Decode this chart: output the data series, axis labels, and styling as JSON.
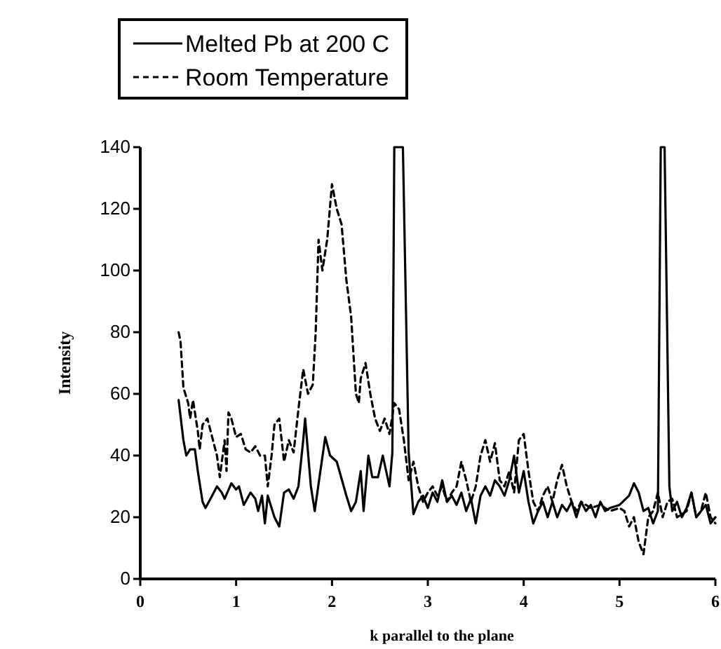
{
  "chart_data": {
    "type": "line",
    "xlabel": "k parallel to the plane",
    "ylabel": "Intensity",
    "xlim": [
      0,
      6
    ],
    "ylim": [
      0,
      140
    ],
    "xticks": [
      0,
      1,
      2,
      3,
      4,
      5,
      6
    ],
    "yticks": [
      0,
      20,
      40,
      60,
      80,
      100,
      120,
      140
    ],
    "grid": false,
    "legend": "top left",
    "marker": "none",
    "series": [
      {
        "name": "Melted Pb at 200 C",
        "color": "#000000",
        "line_style": "solid",
        "x": [
          0.4,
          0.45,
          0.48,
          0.52,
          0.57,
          0.6,
          0.65,
          0.68,
          0.75,
          0.8,
          0.85,
          0.88,
          0.95,
          1.0,
          1.03,
          1.08,
          1.15,
          1.2,
          1.23,
          1.27,
          1.3,
          1.33,
          1.4,
          1.45,
          1.5,
          1.55,
          1.6,
          1.65,
          1.7,
          1.72,
          1.78,
          1.82,
          1.87,
          1.93,
          1.98,
          2.05,
          2.15,
          2.2,
          2.25,
          2.3,
          2.33,
          2.38,
          2.42,
          2.48,
          2.53,
          2.6,
          2.63,
          2.65,
          2.74,
          2.8,
          2.85,
          2.9,
          2.95,
          3.0,
          3.05,
          3.1,
          3.15,
          3.2,
          3.25,
          3.3,
          3.35,
          3.4,
          3.45,
          3.5,
          3.55,
          3.6,
          3.65,
          3.7,
          3.75,
          3.8,
          3.85,
          3.9,
          3.95,
          4.0,
          4.05,
          4.1,
          4.15,
          4.2,
          4.25,
          4.3,
          4.35,
          4.4,
          4.45,
          4.5,
          4.55,
          4.6,
          4.65,
          4.7,
          4.75,
          4.8,
          4.85,
          4.9,
          5.0,
          5.1,
          5.15,
          5.2,
          5.25,
          5.3,
          5.35,
          5.4,
          5.43,
          5.47,
          5.52,
          5.55,
          5.6,
          5.65,
          5.7,
          5.75,
          5.8,
          5.85,
          5.9,
          5.95,
          6.0
        ],
        "values": [
          58,
          45,
          40,
          42,
          42,
          35,
          25,
          23,
          27,
          30,
          28,
          26,
          31,
          29,
          30,
          24,
          28,
          26,
          22,
          27,
          18,
          27,
          20,
          17,
          28,
          29,
          26,
          30,
          45,
          52,
          30,
          22,
          33,
          46,
          40,
          38,
          27,
          22,
          25,
          35,
          22,
          40,
          33,
          33,
          40,
          30,
          41,
          140,
          140,
          41,
          21,
          25,
          27,
          23,
          28,
          25,
          32,
          25,
          27,
          24,
          28,
          22,
          26,
          18,
          27,
          30,
          27,
          32,
          30,
          27,
          32,
          40,
          28,
          35,
          25,
          18,
          22,
          25,
          20,
          25,
          20,
          24,
          22,
          25,
          20,
          25,
          22,
          24,
          20,
          25,
          22,
          23,
          24,
          27,
          31,
          28,
          22,
          23,
          18,
          22,
          140,
          140,
          30,
          22,
          25,
          20,
          23,
          28,
          20,
          22,
          24,
          18,
          20
        ]
      },
      {
        "name": "Room Temperature",
        "color": "#000000",
        "line_style": "dashed",
        "x": [
          0.4,
          0.42,
          0.45,
          0.5,
          0.52,
          0.55,
          0.6,
          0.62,
          0.65,
          0.7,
          0.75,
          0.8,
          0.83,
          0.88,
          0.9,
          0.92,
          0.95,
          1.0,
          1.05,
          1.1,
          1.15,
          1.2,
          1.25,
          1.3,
          1.33,
          1.37,
          1.4,
          1.45,
          1.5,
          1.55,
          1.6,
          1.65,
          1.7,
          1.75,
          1.8,
          1.83,
          1.86,
          1.9,
          1.95,
          2.0,
          2.05,
          2.1,
          2.15,
          2.2,
          2.25,
          2.28,
          2.3,
          2.35,
          2.4,
          2.45,
          2.5,
          2.55,
          2.6,
          2.65,
          2.7,
          2.75,
          2.8,
          2.85,
          2.9,
          2.95,
          3.0,
          3.05,
          3.1,
          3.15,
          3.2,
          3.25,
          3.3,
          3.35,
          3.4,
          3.45,
          3.5,
          3.55,
          3.6,
          3.65,
          3.7,
          3.75,
          3.8,
          3.85,
          3.9,
          3.95,
          4.0,
          4.05,
          4.1,
          4.15,
          4.2,
          4.25,
          4.3,
          4.35,
          4.4,
          4.45,
          4.5,
          4.55,
          4.6,
          4.7,
          4.8,
          4.9,
          5.0,
          5.05,
          5.1,
          5.15,
          5.2,
          5.25,
          5.3,
          5.35,
          5.4,
          5.45,
          5.5,
          5.55,
          5.6,
          5.7,
          5.75,
          5.8,
          5.85,
          5.9,
          5.95,
          6.0
        ],
        "values": [
          80,
          77,
          62,
          57,
          52,
          58,
          48,
          42,
          50,
          52,
          46,
          40,
          33,
          45,
          35,
          54,
          52,
          46,
          47,
          42,
          41,
          43,
          40,
          40,
          30,
          40,
          50,
          52,
          38,
          45,
          41,
          55,
          68,
          60,
          63,
          80,
          110,
          100,
          110,
          128,
          120,
          115,
          97,
          85,
          60,
          57,
          65,
          70,
          60,
          52,
          48,
          52,
          47,
          57,
          55,
          45,
          32,
          38,
          30,
          25,
          28,
          30,
          27,
          30,
          25,
          28,
          30,
          38,
          32,
          25,
          30,
          40,
          45,
          38,
          44,
          32,
          30,
          35,
          28,
          45,
          47,
          35,
          25,
          22,
          27,
          30,
          25,
          32,
          37,
          30,
          25,
          22,
          25,
          23,
          24,
          22,
          23,
          22,
          17,
          20,
          12,
          8,
          20,
          22,
          28,
          20,
          25,
          26,
          20,
          22,
          28,
          20,
          22,
          28,
          20,
          18
        ]
      }
    ]
  }
}
